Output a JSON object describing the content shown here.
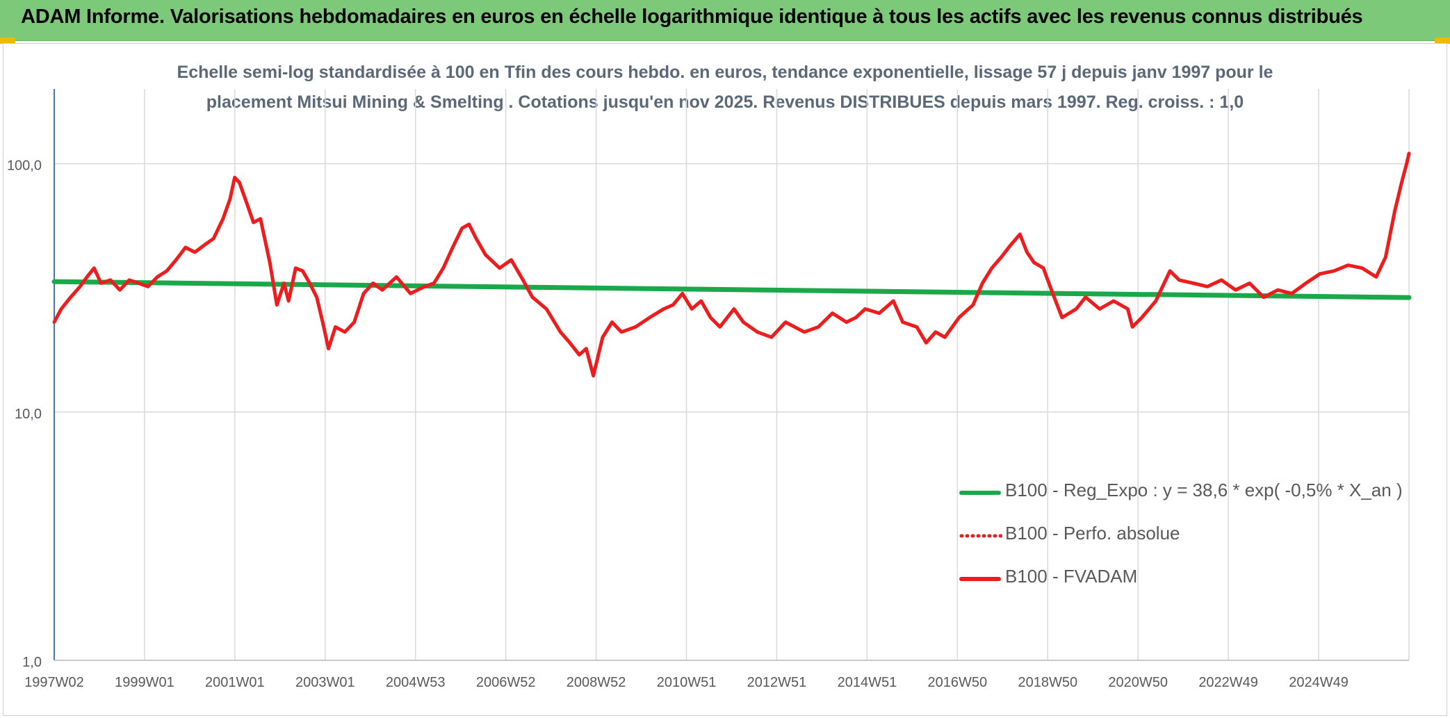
{
  "header": {
    "title": "ADAM Informe. Valorisations hebdomadaires en euros en échelle logarithmique identique à tous les actifs avec les revenus connus distribués"
  },
  "colors": {
    "header_bg": "#7dc97a",
    "reg_expo": "#1aa84a",
    "fvadam": "#ee1c1c",
    "perfo": "#ee1c1c",
    "grid": "#d9d9d9",
    "axis": "#4472c4"
  },
  "chart_data": {
    "type": "line",
    "title_line1": "Echelle semi-log standardisée à 100 en Tfin des cours hebdo. en euros, tendance exponentielle, lissage 57 j depuis janv 1997 pour le",
    "title_line2": "placement Mitsui Mining & Smelting . Cotations jusqu'en nov 2025. Revenus DISTRIBUES depuis mars 1997. Reg. croiss. : 1,0",
    "yscale": "log",
    "ylim": [
      1,
      200
    ],
    "y_ticks": [
      {
        "value": 1,
        "label": "1,0"
      },
      {
        "value": 10,
        "label": "10,0"
      },
      {
        "value": 100,
        "label": "100,0"
      }
    ],
    "x_ticks": [
      "1997W02",
      "1999W01",
      "2001W01",
      "2003W01",
      "2004W53",
      "2006W52",
      "2008W52",
      "2010W51",
      "2012W51",
      "2014W51",
      "2016W50",
      "2018W50",
      "2020W50",
      "2022W49",
      "2024W49"
    ],
    "xlim": [
      1997.0,
      2025.9
    ],
    "grid": true,
    "legend_position": "bottom-right",
    "series": [
      {
        "name": "B100 - Reg_Expo : y = 38,6 * exp( -0,5% *  X_an )",
        "style": "solid-green",
        "points": [
          [
            1997.0,
            33.5
          ],
          [
            2025.9,
            28.9
          ]
        ]
      },
      {
        "name": "B100 - Perfo. absolue",
        "style": "dotted-red",
        "points": []
      },
      {
        "name": "B100 - FVADAM",
        "style": "solid-red",
        "points": [
          [
            1997.0,
            23
          ],
          [
            1997.15,
            26
          ],
          [
            1997.35,
            29
          ],
          [
            1997.55,
            32
          ],
          [
            1997.7,
            35
          ],
          [
            1997.85,
            38
          ],
          [
            1998.0,
            33
          ],
          [
            1998.2,
            34
          ],
          [
            1998.4,
            31
          ],
          [
            1998.6,
            34
          ],
          [
            1998.8,
            33
          ],
          [
            1999.0,
            32
          ],
          [
            1999.2,
            35
          ],
          [
            1999.4,
            37
          ],
          [
            1999.6,
            41
          ],
          [
            1999.8,
            46
          ],
          [
            2000.0,
            44
          ],
          [
            2000.2,
            47
          ],
          [
            2000.4,
            50
          ],
          [
            2000.6,
            60
          ],
          [
            2000.75,
            72
          ],
          [
            2000.85,
            88
          ],
          [
            2000.95,
            84
          ],
          [
            2001.1,
            70
          ],
          [
            2001.25,
            58
          ],
          [
            2001.4,
            60
          ],
          [
            2001.6,
            40
          ],
          [
            2001.75,
            27
          ],
          [
            2001.9,
            33
          ],
          [
            2002.0,
            28
          ],
          [
            2002.15,
            38
          ],
          [
            2002.3,
            37
          ],
          [
            2002.45,
            33
          ],
          [
            2002.6,
            29
          ],
          [
            2002.75,
            22
          ],
          [
            2002.85,
            18
          ],
          [
            2003.0,
            22
          ],
          [
            2003.2,
            21
          ],
          [
            2003.4,
            23
          ],
          [
            2003.6,
            30
          ],
          [
            2003.8,
            33
          ],
          [
            2004.0,
            31
          ],
          [
            2004.3,
            35
          ],
          [
            2004.6,
            30
          ],
          [
            2004.9,
            32
          ],
          [
            2005.1,
            33
          ],
          [
            2005.3,
            38
          ],
          [
            2005.5,
            46
          ],
          [
            2005.7,
            55
          ],
          [
            2005.85,
            57
          ],
          [
            2006.0,
            50
          ],
          [
            2006.2,
            43
          ],
          [
            2006.5,
            38
          ],
          [
            2006.75,
            41
          ],
          [
            2007.0,
            34
          ],
          [
            2007.2,
            29
          ],
          [
            2007.5,
            26
          ],
          [
            2007.8,
            21
          ],
          [
            2008.0,
            19
          ],
          [
            2008.2,
            17
          ],
          [
            2008.35,
            18
          ],
          [
            2008.5,
            14
          ],
          [
            2008.7,
            20
          ],
          [
            2008.9,
            23
          ],
          [
            2009.1,
            21
          ],
          [
            2009.4,
            22
          ],
          [
            2009.7,
            24
          ],
          [
            2010.0,
            26
          ],
          [
            2010.2,
            27
          ],
          [
            2010.4,
            30
          ],
          [
            2010.6,
            26
          ],
          [
            2010.8,
            28
          ],
          [
            2011.0,
            24
          ],
          [
            2011.2,
            22
          ],
          [
            2011.5,
            26
          ],
          [
            2011.7,
            23
          ],
          [
            2012.0,
            21
          ],
          [
            2012.3,
            20
          ],
          [
            2012.6,
            23
          ],
          [
            2013.0,
            21
          ],
          [
            2013.3,
            22
          ],
          [
            2013.6,
            25
          ],
          [
            2013.9,
            23
          ],
          [
            2014.1,
            24
          ],
          [
            2014.3,
            26
          ],
          [
            2014.6,
            25
          ],
          [
            2014.9,
            28
          ],
          [
            2015.1,
            23
          ],
          [
            2015.4,
            22
          ],
          [
            2015.6,
            19
          ],
          [
            2015.8,
            21
          ],
          [
            2016.0,
            20
          ],
          [
            2016.3,
            24
          ],
          [
            2016.6,
            27
          ],
          [
            2016.8,
            33
          ],
          [
            2017.0,
            38
          ],
          [
            2017.2,
            42
          ],
          [
            2017.4,
            47
          ],
          [
            2017.6,
            52
          ],
          [
            2017.75,
            44
          ],
          [
            2017.9,
            40
          ],
          [
            2018.1,
            38
          ],
          [
            2018.3,
            30
          ],
          [
            2018.5,
            24
          ],
          [
            2018.8,
            26
          ],
          [
            2019.0,
            29
          ],
          [
            2019.3,
            26
          ],
          [
            2019.6,
            28
          ],
          [
            2019.9,
            26
          ],
          [
            2020.0,
            22
          ],
          [
            2020.2,
            24
          ],
          [
            2020.5,
            28
          ],
          [
            2020.8,
            37
          ],
          [
            2021.0,
            34
          ],
          [
            2021.3,
            33
          ],
          [
            2021.6,
            32
          ],
          [
            2021.9,
            34
          ],
          [
            2022.2,
            31
          ],
          [
            2022.5,
            33
          ],
          [
            2022.8,
            29
          ],
          [
            2023.1,
            31
          ],
          [
            2023.4,
            30
          ],
          [
            2023.7,
            33
          ],
          [
            2024.0,
            36
          ],
          [
            2024.3,
            37
          ],
          [
            2024.6,
            39
          ],
          [
            2024.9,
            38
          ],
          [
            2025.2,
            35
          ],
          [
            2025.4,
            42
          ],
          [
            2025.6,
            65
          ],
          [
            2025.75,
            85
          ],
          [
            2025.85,
            100
          ],
          [
            2025.9,
            110
          ]
        ]
      }
    ]
  }
}
